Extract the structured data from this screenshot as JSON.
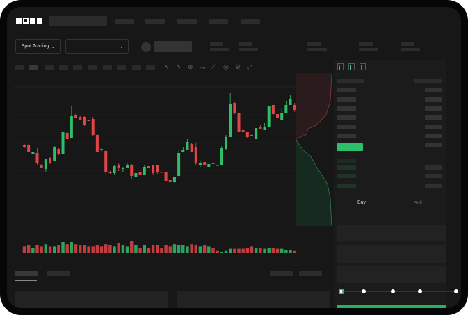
{
  "brand": {
    "logo": "OKX"
  },
  "header": {
    "market_selector": {
      "label": "Spot Trading",
      "icon": "chevron-down-icon"
    },
    "pair_selector": {
      "icon": "chevron-down-icon"
    }
  },
  "toolbar": {
    "icons": [
      "indicator-icon",
      "indicator-icon",
      "indicator-icon",
      "line-icon",
      "draw-icon",
      "target-icon",
      "settings-icon",
      "fullscreen-icon"
    ]
  },
  "orderbook": {
    "layout_icons": [
      "orderbook-both-icon",
      "orderbook-bids-icon",
      "orderbook-asks-icon"
    ]
  },
  "trade_form": {
    "tabs": [
      {
        "label": "Buy",
        "active": true
      },
      {
        "label": "Sell",
        "active": false
      }
    ],
    "slider_level": 0,
    "submit_color": "#22b35e"
  },
  "colors": {
    "up": "#2ebd6b",
    "down": "#e04545",
    "background": "#171717"
  },
  "chart_data": {
    "type": "candlestick",
    "candles_ochl": [
      [
        77,
        73,
        78,
        72
      ],
      [
        77,
        67,
        78,
        66
      ],
      [
        64,
        66,
        66,
        64
      ],
      [
        65,
        50,
        72,
        48
      ],
      [
        48,
        44,
        49,
        43
      ],
      [
        42,
        57,
        57,
        38
      ],
      [
        58,
        50,
        59,
        49
      ],
      [
        54,
        73,
        75,
        53
      ],
      [
        71,
        63,
        72,
        62
      ],
      [
        64,
        95,
        104,
        64
      ],
      [
        94,
        85,
        97,
        85
      ],
      [
        86,
        118,
        132,
        86
      ],
      [
        120,
        115,
        122,
        115
      ],
      [
        117,
        113,
        118,
        112
      ],
      [
        117,
        105,
        118,
        104
      ],
      [
        113,
        111,
        113,
        111
      ],
      [
        114,
        91,
        117,
        90
      ],
      [
        91,
        67,
        92,
        67
      ],
      [
        71,
        69,
        72,
        67
      ],
      [
        68,
        37,
        69,
        33
      ],
      [
        38,
        36,
        39,
        35
      ],
      [
        36,
        46,
        47,
        33
      ],
      [
        47,
        43,
        50,
        39
      ],
      [
        42,
        44,
        45,
        38
      ],
      [
        43,
        48,
        50,
        43
      ],
      [
        48,
        32,
        49,
        28
      ],
      [
        31,
        36,
        36,
        29
      ],
      [
        37,
        33,
        38,
        31
      ],
      [
        34,
        45,
        48,
        34
      ],
      [
        46,
        43,
        46,
        43
      ],
      [
        47,
        36,
        48,
        33
      ],
      [
        47,
        37,
        48,
        35
      ],
      [
        38,
        37,
        38,
        37
      ],
      [
        37,
        24,
        37,
        24
      ],
      [
        26,
        23,
        26,
        23
      ],
      [
        23,
        30,
        31,
        22
      ],
      [
        32,
        65,
        70,
        30
      ],
      [
        66,
        70,
        73,
        66
      ],
      [
        70,
        81,
        85,
        70
      ],
      [
        78,
        67,
        79,
        67
      ],
      [
        73,
        50,
        79,
        48
      ],
      [
        48,
        50,
        53,
        45
      ],
      [
        52,
        47,
        52,
        47
      ],
      [
        45,
        49,
        49,
        45
      ],
      [
        51,
        49,
        51,
        40
      ],
      [
        48,
        47,
        48,
        46
      ],
      [
        48,
        72,
        75,
        48
      ],
      [
        71,
        88,
        91,
        70
      ],
      [
        88,
        135,
        151,
        88
      ],
      [
        137,
        123,
        139,
        121
      ],
      [
        123,
        95,
        123,
        91
      ],
      [
        98,
        95,
        98,
        95
      ],
      [
        95,
        88,
        95,
        87
      ],
      [
        91,
        89,
        93,
        89
      ],
      [
        85,
        101,
        101,
        85
      ],
      [
        103,
        100,
        105,
        100
      ],
      [
        98,
        103,
        108,
        98
      ],
      [
        103,
        132,
        132,
        103
      ],
      [
        134,
        121,
        134,
        119
      ],
      [
        121,
        116,
        121,
        116
      ],
      [
        113,
        123,
        130,
        113
      ],
      [
        123,
        134,
        140,
        123
      ],
      [
        134,
        143,
        148,
        134
      ],
      [
        134,
        127,
        137,
        124
      ],
      [
        124,
        131,
        138,
        124
      ]
    ],
    "volumes": [
      6,
      7,
      5,
      7,
      6,
      8,
      6,
      6,
      7,
      10,
      8,
      10,
      8,
      7,
      7,
      6,
      6,
      7,
      6,
      8,
      7,
      6,
      9,
      7,
      6,
      11,
      7,
      5,
      7,
      5,
      7,
      7,
      5,
      7,
      6,
      8,
      7,
      7,
      6,
      8,
      7,
      6,
      7,
      6,
      5,
      2,
      1,
      2,
      4,
      4,
      4,
      4,
      5,
      6,
      5,
      5,
      4,
      5,
      5,
      4,
      4,
      3,
      3,
      2,
      3
    ],
    "grid": true
  }
}
